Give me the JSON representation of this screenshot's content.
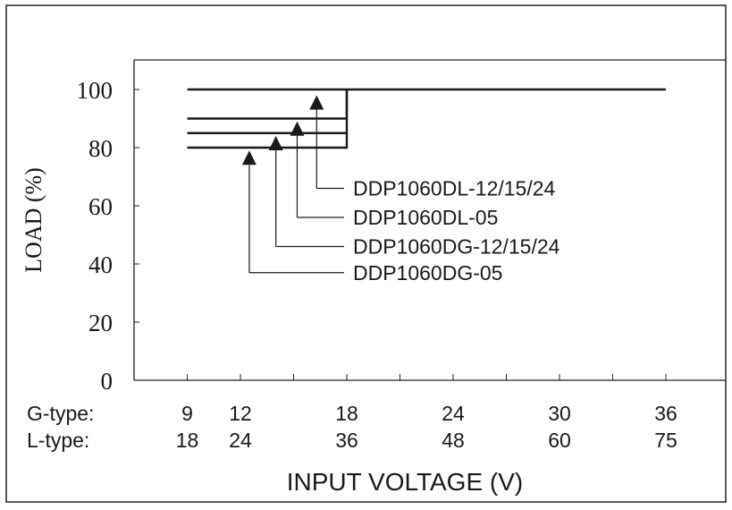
{
  "chart_data": {
    "type": "line",
    "title": "",
    "xlabel": "INPUT VOLTAGE (V)",
    "ylabel": "LOAD (%)",
    "ylim": [
      0,
      100
    ],
    "yticks": [
      "0",
      "20",
      "40",
      "60",
      "80",
      "100"
    ],
    "xlim": [
      6,
      39
    ],
    "grid": false,
    "x_axis_rows": [
      {
        "label": "G-type:",
        "ticks": [
          {
            "x": 9,
            "text": "9"
          },
          {
            "x": 12,
            "text": "12"
          },
          {
            "x": 18,
            "text": "18"
          },
          {
            "x": 24,
            "text": "24"
          },
          {
            "x": 30,
            "text": "30"
          },
          {
            "x": 36,
            "text": "36"
          }
        ]
      },
      {
        "label": "L-type:",
        "ticks": [
          {
            "x": 9,
            "text": "18"
          },
          {
            "x": 12,
            "text": "24"
          },
          {
            "x": 18,
            "text": "36"
          },
          {
            "x": 24,
            "text": "48"
          },
          {
            "x": 30,
            "text": "60"
          },
          {
            "x": 36,
            "text": "75"
          }
        ]
      }
    ],
    "minor_ticks_x": [
      9,
      12,
      15,
      18,
      21,
      24,
      27,
      30,
      33,
      36
    ],
    "series": [
      {
        "name": "DDP1060DL-12/15/24",
        "points": [
          [
            9,
            100
          ],
          [
            36,
            100
          ]
        ]
      },
      {
        "name": "DDP1060DL-05",
        "points": [
          [
            9,
            90
          ],
          [
            18,
            90
          ],
          [
            18,
            100
          ]
        ]
      },
      {
        "name": "DDP1060DG-12/15/24",
        "points": [
          [
            9,
            85
          ],
          [
            18,
            85
          ]
        ]
      },
      {
        "name": "DDP1060DG-05",
        "points": [
          [
            9,
            80
          ],
          [
            18,
            80
          ],
          [
            18,
            100
          ]
        ]
      }
    ],
    "annotations": [
      {
        "text": "DDP1060DL-12/15/24",
        "arrow_x": 16.3,
        "arrow_tip_y": 98,
        "arrow_base_y": 66
      },
      {
        "text": "DDP1060DL-05",
        "arrow_x": 15.2,
        "arrow_tip_y": 89,
        "arrow_base_y": 56
      },
      {
        "text": "DDP1060DG-12/15/24",
        "arrow_x": 14.0,
        "arrow_tip_y": 84,
        "arrow_base_y": 46
      },
      {
        "text": "DDP1060DG-05",
        "arrow_x": 12.5,
        "arrow_tip_y": 79,
        "arrow_base_y": 37
      }
    ]
  }
}
